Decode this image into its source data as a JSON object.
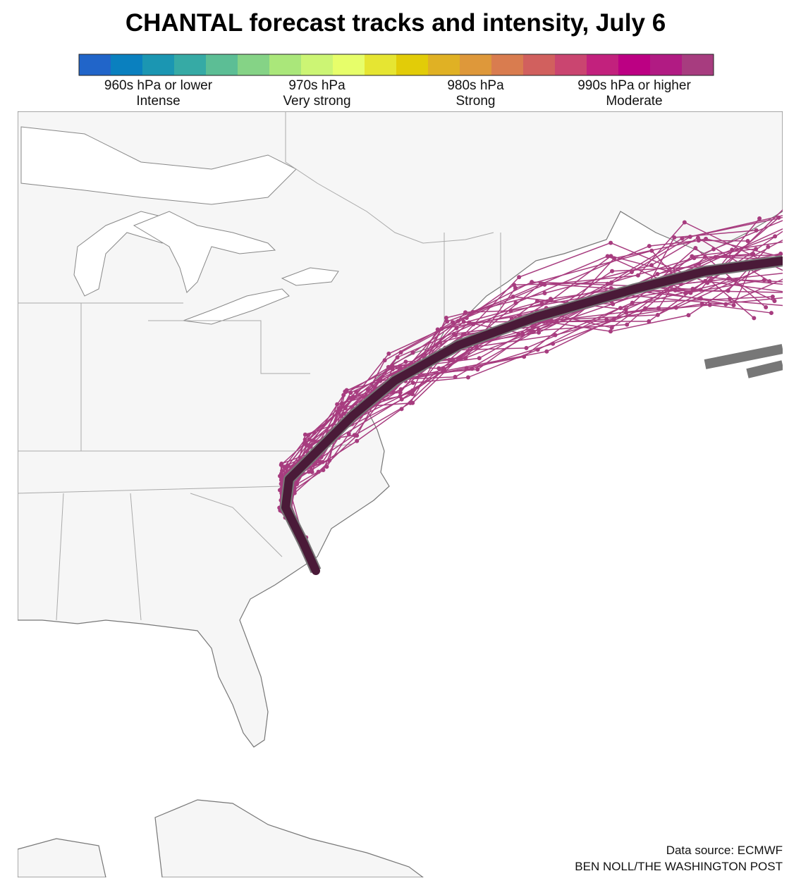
{
  "title": "CHANTAL forecast tracks and intensity, July 6",
  "legend": {
    "colors": [
      "#2165c9",
      "#0a80bf",
      "#1b96b2",
      "#36aaa5",
      "#5cbe95",
      "#85d386",
      "#aae77a",
      "#ccf574",
      "#e7fe6a",
      "#e6e532",
      "#e2cc08",
      "#e0b124",
      "#de983a",
      "#d97c4f",
      "#d1605e",
      "#ca4570",
      "#c2217d",
      "#bc0083",
      "#b11b83",
      "#a73c7f"
    ],
    "labels": [
      {
        "pressure": "960s hPa or lower",
        "category": "Intense"
      },
      {
        "pressure": "970s hPa",
        "category": "Very strong"
      },
      {
        "pressure": "980s hPa",
        "category": "Strong"
      },
      {
        "pressure": "990s hPa or higher",
        "category": "Moderate"
      }
    ]
  },
  "footer": {
    "source": "Data source: ECMWF",
    "credit": "BEN NOLL/THE WASHINGTON POST"
  }
}
